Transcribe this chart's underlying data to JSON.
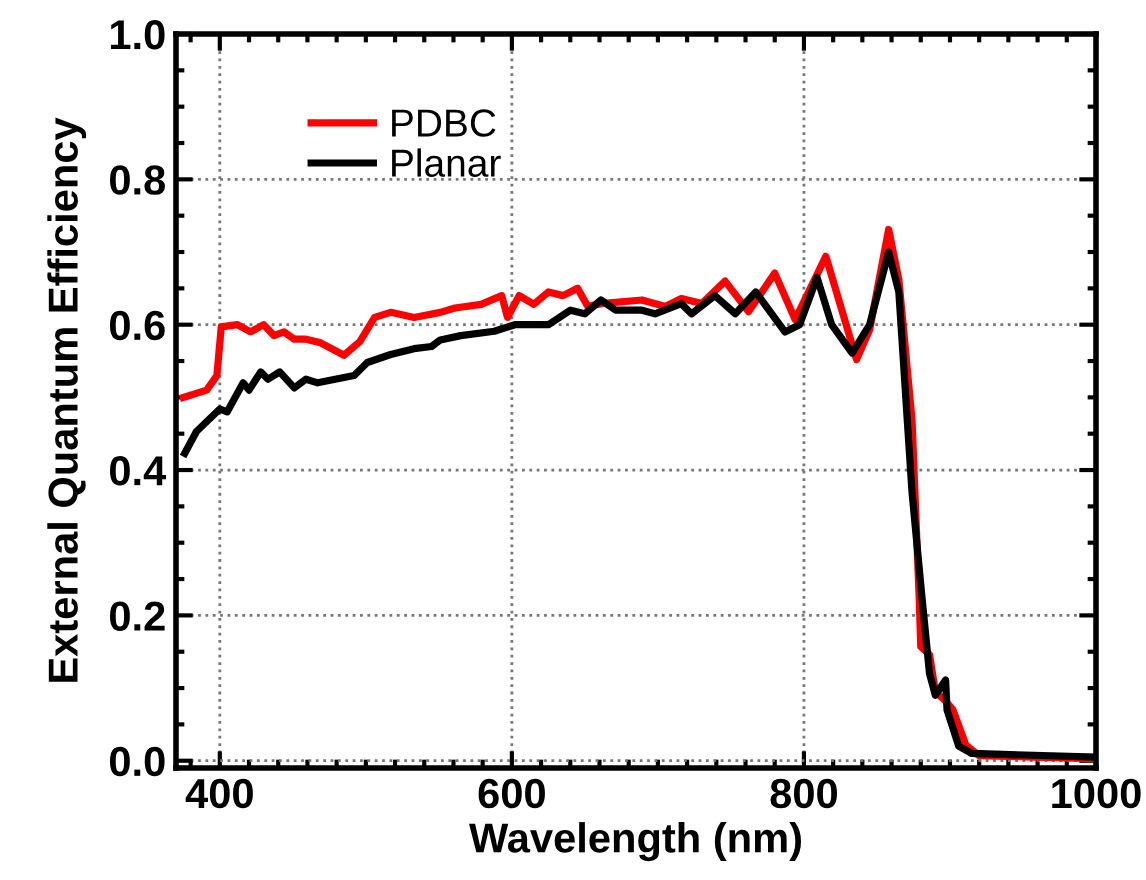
{
  "chart_data": {
    "type": "line",
    "xlabel": "Wavelength (nm)",
    "ylabel": "External Quantum Efficiency",
    "xlim": [
      370,
      1000
    ],
    "xticks": [
      400,
      600,
      800,
      1000
    ],
    "ylim": [
      -0.01,
      1.0
    ],
    "yticks": [
      {
        "value": 0,
        "label": "0.0"
      },
      {
        "value": 0.2,
        "label": "0.2"
      },
      {
        "value": 0.4,
        "label": "0.4"
      },
      {
        "value": 0.6,
        "label": "0.6"
      },
      {
        "value": 0.8,
        "label": "0.8"
      },
      {
        "value": 1,
        "label": "1.0"
      }
    ],
    "grid": true,
    "legend": "top left",
    "line_style": "solid",
    "marker": "none",
    "series": [
      {
        "name": "PDBC",
        "color": "#ff0000",
        "x": [
          375,
          391,
          398,
          401,
          412,
          421,
          430,
          437,
          444,
          451,
          459,
          469,
          485,
          496,
          506,
          517,
          533,
          551,
          561,
          579,
          593,
          597,
          605,
          615,
          625,
          635,
          645,
          652,
          661,
          689,
          705,
          716,
          730,
          746,
          762,
          780,
          794,
          815,
          836,
          845,
          858,
          865,
          874,
          879,
          880,
          886,
          890,
          897,
          902,
          911,
          920,
          958,
          1000
        ],
        "values": [
          0.5,
          0.51,
          0.53,
          0.597,
          0.6,
          0.59,
          0.6,
          0.585,
          0.59,
          0.58,
          0.58,
          0.575,
          0.558,
          0.577,
          0.61,
          0.617,
          0.61,
          0.617,
          0.623,
          0.628,
          0.64,
          0.61,
          0.64,
          0.628,
          0.645,
          0.64,
          0.65,
          0.625,
          0.629,
          0.634,
          0.625,
          0.636,
          0.629,
          0.66,
          0.618,
          0.671,
          0.607,
          0.694,
          0.552,
          0.593,
          0.731,
          0.662,
          0.469,
          0.22,
          0.157,
          0.146,
          0.095,
          0.082,
          0.07,
          0.021,
          0.007,
          0.005,
          0.003
        ]
      },
      {
        "name": "Planar",
        "color": "#000000",
        "x": [
          376,
          384,
          400,
          405,
          416,
          420,
          428,
          433,
          441,
          451,
          459,
          467,
          479,
          492,
          501,
          517,
          533,
          545,
          551,
          565,
          588,
          602,
          625,
          640,
          650,
          661,
          671,
          689,
          698,
          716,
          723,
          739,
          753,
          767,
          787,
          797,
          809,
          819,
          833,
          845,
          858,
          865,
          874,
          881,
          886,
          890,
          897,
          898,
          906,
          915,
          1000
        ],
        "values": [
          0.423,
          0.453,
          0.484,
          0.48,
          0.52,
          0.51,
          0.535,
          0.525,
          0.535,
          0.513,
          0.525,
          0.52,
          0.525,
          0.53,
          0.548,
          0.559,
          0.567,
          0.57,
          0.579,
          0.585,
          0.591,
          0.6,
          0.6,
          0.62,
          0.615,
          0.634,
          0.62,
          0.62,
          0.615,
          0.629,
          0.615,
          0.64,
          0.615,
          0.645,
          0.59,
          0.6,
          0.665,
          0.6,
          0.561,
          0.6,
          0.7,
          0.645,
          0.37,
          0.221,
          0.12,
          0.09,
          0.111,
          0.07,
          0.02,
          0.01,
          0.005
        ]
      }
    ]
  }
}
